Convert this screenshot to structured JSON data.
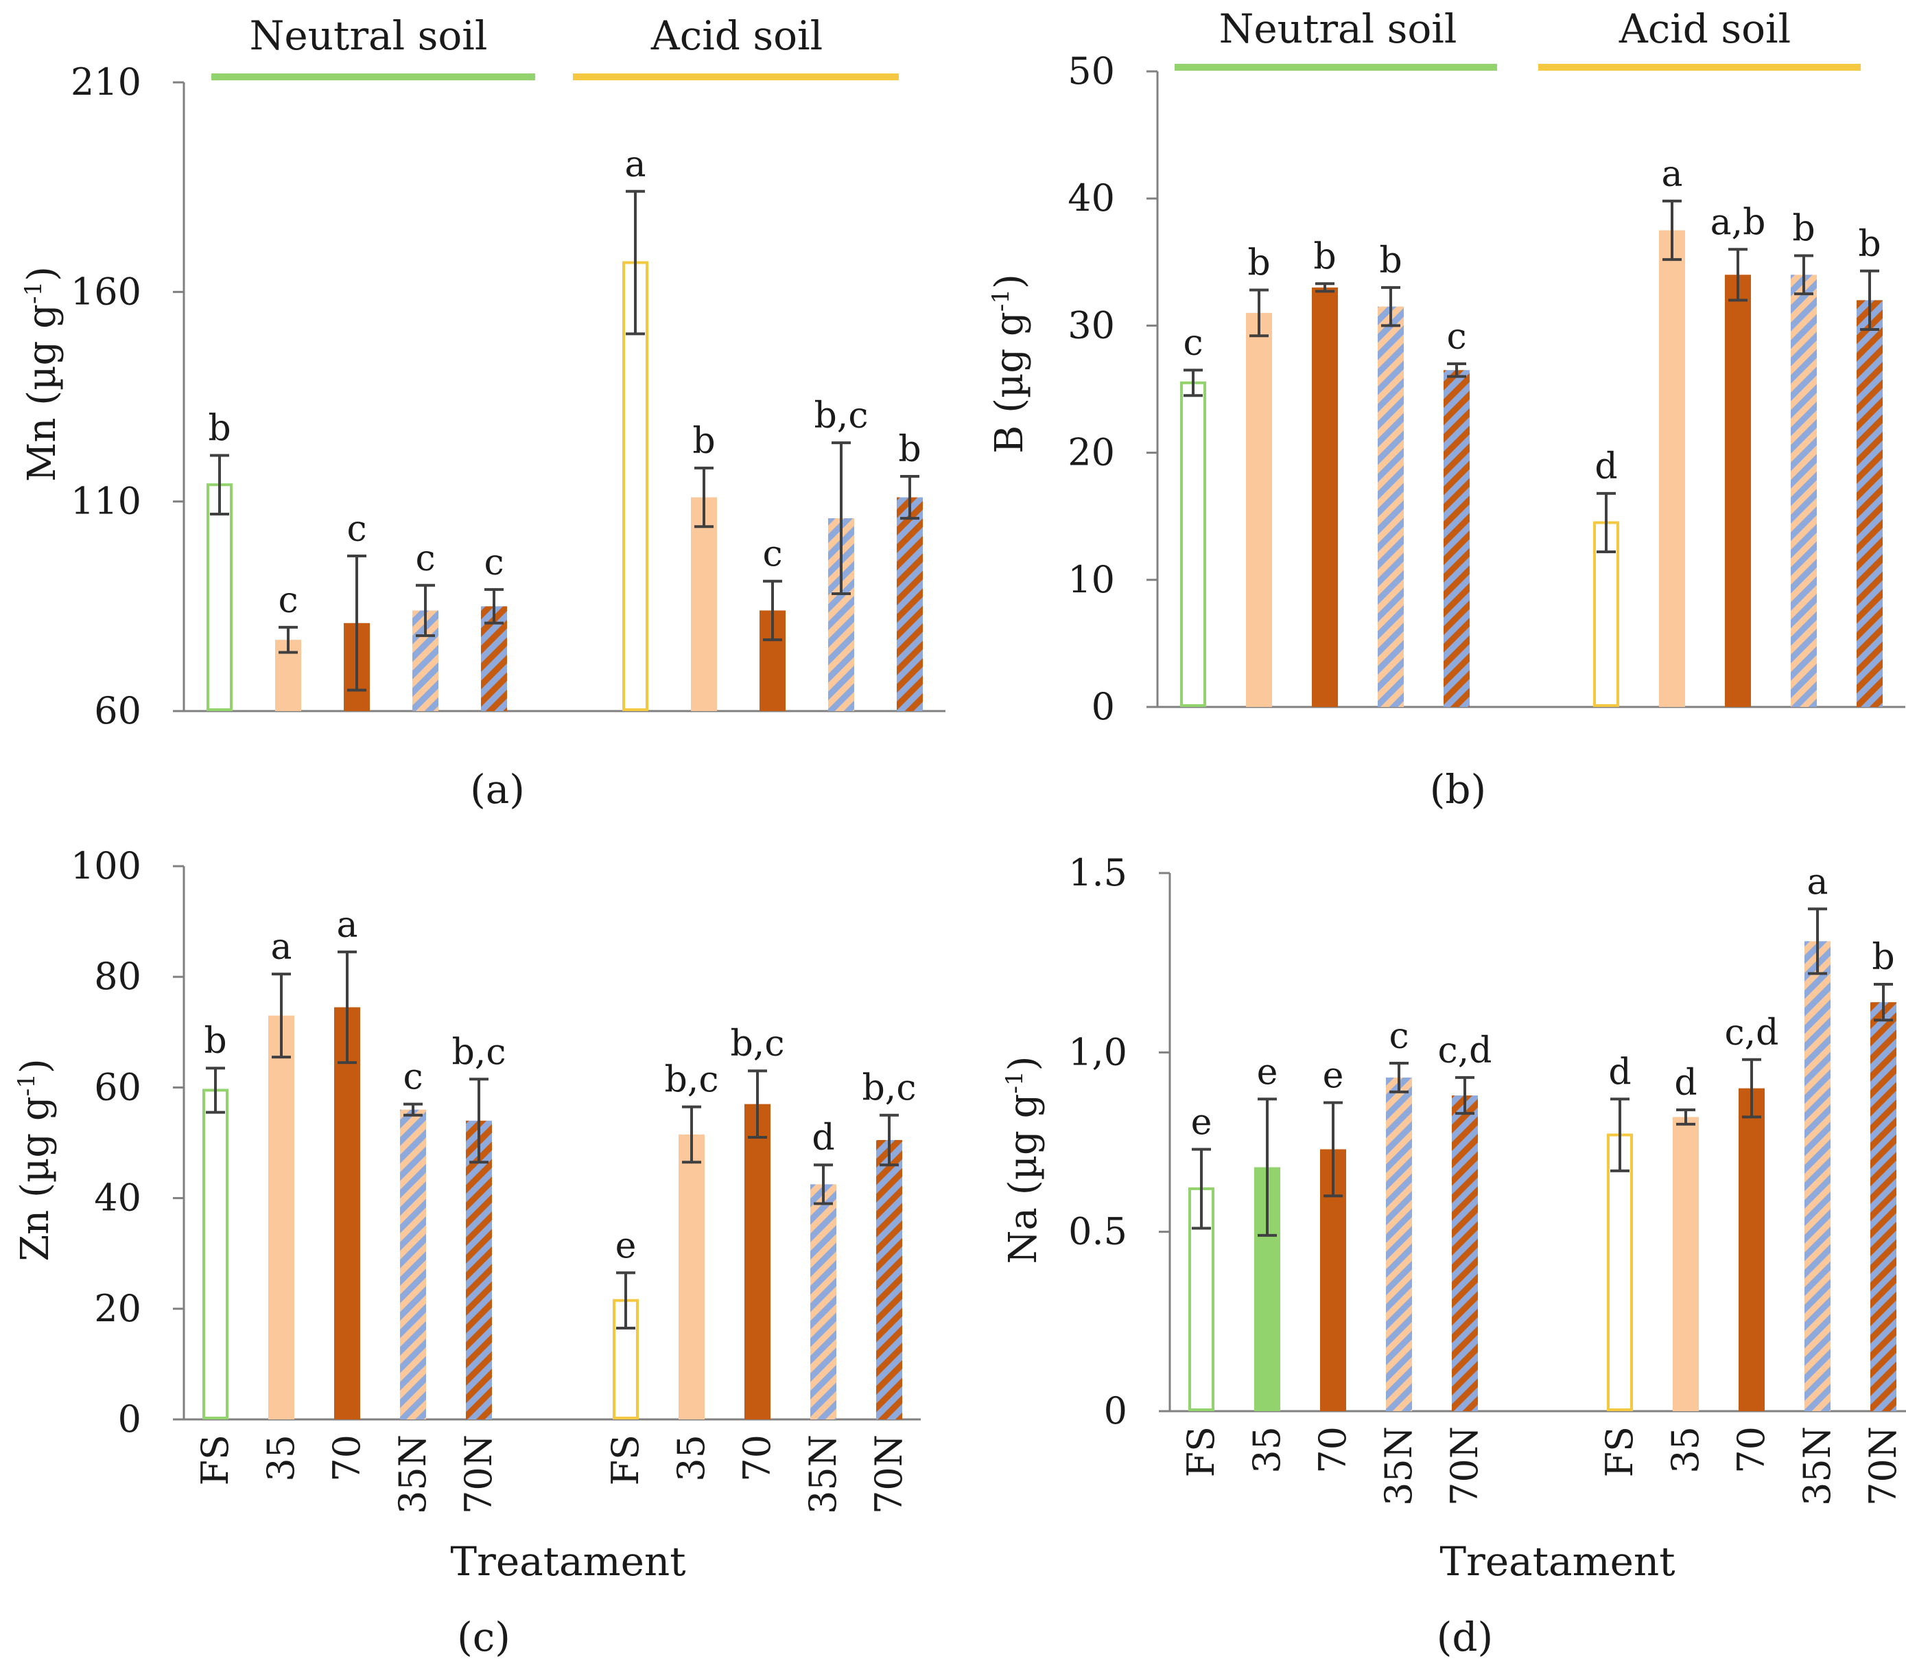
{
  "chart_data": [
    {
      "panel": "(a)",
      "type": "bar",
      "ylabel_main": "Mn (µg g",
      "ylabel_sup": "-1",
      "ylabel_close": ")",
      "ylim": [
        60,
        210
      ],
      "yticks": [
        60,
        110,
        160,
        210
      ],
      "ytick_labels": [
        "60",
        "110",
        "160",
        "210"
      ],
      "xlabel": "",
      "categories": [
        "FS",
        "35",
        "70",
        "35N",
        "70N",
        "FS",
        "35",
        "70",
        "35N",
        "70N"
      ],
      "show_category_labels": false,
      "groups": [
        {
          "label": "Neutral soil",
          "color": "#92d36e"
        },
        {
          "label": "Acid soil",
          "color": "#f5c842"
        }
      ],
      "values": [
        114,
        77,
        81,
        84,
        85,
        167,
        111,
        84,
        106,
        111
      ],
      "errors": [
        7,
        3,
        16,
        6,
        4,
        17,
        7,
        7,
        18,
        5
      ],
      "letters": [
        "b",
        "c",
        "c",
        "c",
        "c",
        "a",
        "b",
        "c",
        "b,c",
        "b"
      ]
    },
    {
      "panel": "(b)",
      "type": "bar",
      "ylabel_main": "B (µg g",
      "ylabel_sup": "-1",
      "ylabel_close": ")",
      "ylim": [
        0,
        50
      ],
      "yticks": [
        0,
        10,
        20,
        30,
        40,
        50
      ],
      "ytick_labels": [
        "0",
        "10",
        "20",
        "30",
        "40",
        "50"
      ],
      "xlabel": "",
      "categories": [
        "FS",
        "35",
        "70",
        "35N",
        "70N",
        "FS",
        "35",
        "70",
        "35N",
        "70N"
      ],
      "show_category_labels": false,
      "groups": [
        {
          "label": "Neutral soil",
          "color": "#92d36e"
        },
        {
          "label": "Acid soil",
          "color": "#f5c842"
        }
      ],
      "values": [
        25.5,
        31,
        33,
        31.5,
        26.5,
        14.5,
        37.5,
        34,
        34,
        32
      ],
      "errors": [
        1,
        1.8,
        0.3,
        1.5,
        0.5,
        2.3,
        2.3,
        2,
        1.5,
        2.3
      ],
      "letters": [
        "c",
        "b",
        "b",
        "b",
        "c",
        "d",
        "a",
        "a,b",
        "b",
        "b"
      ]
    },
    {
      "panel": "(c)",
      "type": "bar",
      "ylabel_main": "Zn (µg g",
      "ylabel_sup": "-1",
      "ylabel_close": ")",
      "ylim": [
        0,
        100
      ],
      "yticks": [
        0,
        20,
        40,
        60,
        80,
        100
      ],
      "ytick_labels": [
        "0",
        "20",
        "40",
        "60",
        "80",
        "100"
      ],
      "xlabel": "Treatament",
      "categories": [
        "FS",
        "35",
        "70",
        "35N",
        "70N",
        "FS",
        "35",
        "70",
        "35N",
        "70N"
      ],
      "show_category_labels": true,
      "groups": [],
      "values": [
        59.5,
        73,
        74.5,
        56,
        54,
        21.5,
        51.5,
        57,
        42.5,
        50.5
      ],
      "errors": [
        4,
        7.5,
        10,
        1,
        7.5,
        5,
        5,
        6,
        3.5,
        4.5
      ],
      "letters": [
        "b",
        "a",
        "a",
        "c",
        "b,c",
        "e",
        "b,c",
        "b,c",
        "d",
        "b,c"
      ]
    },
    {
      "panel": "(d)",
      "type": "bar",
      "ylabel_main": "Na (µg g",
      "ylabel_sup": "-1",
      "ylabel_close": ")",
      "ylim": [
        0,
        1.5
      ],
      "yticks": [
        0,
        0.5,
        1.0,
        1.5
      ],
      "ytick_labels": [
        "0",
        "0.5",
        "1,0",
        "1.5"
      ],
      "xlabel": "Treatament",
      "categories": [
        "FS",
        "35",
        "70",
        "35N",
        "70N",
        "FS",
        "35",
        "70",
        "35N",
        "70N"
      ],
      "show_category_labels": true,
      "groups": [],
      "values": [
        0.62,
        0.68,
        0.73,
        0.93,
        0.88,
        0.77,
        0.82,
        0.9,
        1.31,
        1.14
      ],
      "errors": [
        0.11,
        0.19,
        0.13,
        0.04,
        0.05,
        0.1,
        0.02,
        0.08,
        0.09,
        0.05
      ],
      "letters": [
        "e",
        "e",
        "e",
        "c",
        "c,d",
        "d",
        "d",
        "c,d",
        "a",
        "b"
      ],
      "fs35_green": true
    }
  ],
  "colors": {
    "neutral_fs": "#92d36e",
    "acid_fs": "#f5c842",
    "light": "#fbc89b",
    "dark": "#c55a11",
    "hatch": "#8ea9db",
    "axis": "#808080",
    "error": "#404040"
  }
}
